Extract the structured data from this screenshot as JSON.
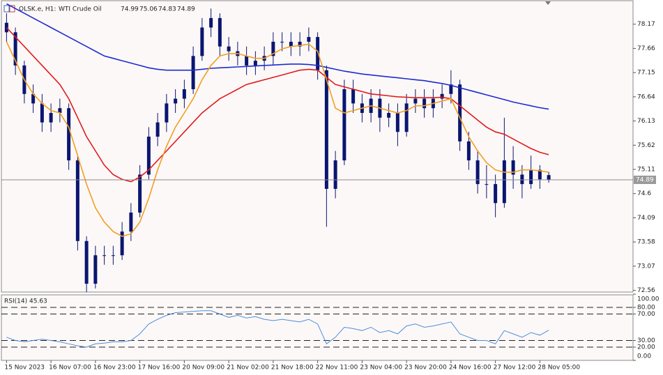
{
  "chart_data": [
    {
      "type": "candlestick",
      "title": "OLSK.e, H1:",
      "subtitle": "WTI Crude Oil",
      "categories": [
        "15 Nov 2023",
        null,
        null,
        null,
        null,
        "16 Nov 07:00",
        null,
        null,
        null,
        null,
        "16 Nov 23:00",
        null,
        null,
        null,
        null,
        "17 Nov 16:00",
        null,
        null,
        null,
        null,
        "20 Nov 09:00",
        null,
        null,
        null,
        null,
        "21 Nov 02:00",
        null,
        null,
        null,
        null,
        "21 Nov 18:00",
        null,
        null,
        null,
        null,
        "22 Nov 11:00",
        null,
        null,
        null,
        null,
        "23 Nov 04:00",
        null,
        null,
        null,
        null,
        "23 Nov 20:00",
        null,
        null,
        null,
        null,
        "24 Nov 16:00",
        null,
        null,
        null,
        null,
        "27 Nov 12:00",
        null,
        null,
        null,
        null,
        "28 Nov 05:00",
        null
      ],
      "open": [
        78.2,
        78.0,
        77.3,
        76.7,
        76.5,
        76.1,
        76.3,
        76.4,
        75.3,
        73.6,
        72.7,
        73.3,
        73.3,
        73.3,
        73.8,
        74.2,
        75.0,
        75.8,
        76.1,
        76.5,
        76.6,
        76.8,
        77.5,
        78.1,
        78.3,
        77.7,
        77.6,
        77.5,
        77.3,
        77.4,
        77.5,
        77.8,
        77.8,
        77.7,
        77.8,
        77.9,
        77.2,
        74.7,
        75.3,
        76.8,
        76.5,
        76.3,
        76.6,
        76.2,
        76.3,
        75.9,
        76.5,
        76.6,
        76.4,
        76.6,
        76.7,
        76.9,
        75.7,
        75.3,
        74.8,
        74.8,
        74.4,
        75.3,
        75.0,
        74.8,
        75.1,
        74.99
      ],
      "high": [
        78.4,
        78.1,
        77.4,
        76.9,
        76.7,
        76.5,
        76.6,
        76.5,
        75.4,
        73.7,
        73.5,
        73.5,
        73.5,
        74.0,
        74.4,
        75.2,
        76.0,
        76.3,
        76.7,
        76.8,
        77.0,
        77.7,
        78.3,
        78.5,
        78.4,
        77.9,
        77.8,
        77.7,
        77.6,
        77.7,
        78.0,
        78.0,
        78.0,
        78.0,
        78.1,
        78.0,
        77.3,
        75.5,
        77.0,
        77.0,
        76.7,
        76.8,
        76.8,
        76.5,
        76.5,
        76.7,
        76.8,
        76.8,
        76.8,
        76.9,
        77.2,
        77.0,
        75.9,
        75.5,
        75.2,
        75.0,
        76.2,
        75.6,
        75.2,
        75.4,
        75.2,
        75.06
      ],
      "low": [
        77.8,
        77.1,
        76.5,
        76.3,
        75.9,
        75.9,
        76.1,
        75.1,
        73.4,
        72.5,
        72.6,
        73.1,
        73.1,
        73.2,
        73.6,
        74.1,
        74.9,
        75.6,
        75.9,
        76.3,
        76.4,
        76.7,
        77.4,
        77.9,
        77.5,
        77.4,
        77.3,
        77.1,
        77.1,
        77.2,
        77.3,
        77.6,
        77.5,
        77.5,
        77.6,
        77.0,
        73.9,
        74.5,
        75.2,
        76.3,
        76.1,
        76.1,
        75.9,
        76.0,
        75.6,
        75.8,
        76.3,
        76.2,
        76.2,
        76.4,
        76.5,
        75.5,
        75.1,
        74.6,
        74.5,
        74.1,
        74.3,
        74.7,
        74.5,
        74.7,
        74.7,
        74.83
      ],
      "close": [
        78.0,
        77.3,
        76.7,
        76.5,
        76.1,
        76.3,
        76.4,
        75.3,
        73.6,
        72.7,
        73.3,
        73.3,
        73.3,
        73.8,
        74.2,
        75.0,
        75.8,
        76.1,
        76.5,
        76.6,
        76.8,
        77.5,
        78.1,
        78.3,
        77.7,
        77.6,
        77.5,
        77.3,
        77.4,
        77.5,
        77.8,
        77.8,
        77.7,
        77.8,
        77.9,
        77.2,
        74.7,
        75.3,
        76.8,
        76.5,
        76.3,
        76.6,
        76.2,
        76.3,
        75.9,
        76.5,
        76.6,
        76.4,
        76.6,
        76.7,
        76.9,
        75.7,
        75.3,
        74.8,
        74.8,
        74.4,
        75.3,
        75.0,
        74.8,
        75.1,
        74.9,
        74.89
      ],
      "color": "#0a1670",
      "series": [
        {
          "color": "#1c2bd0",
          "values": [
            78.6,
            78.5,
            78.4,
            78.3,
            78.2,
            78.1,
            78.0,
            77.9,
            77.8,
            77.7,
            77.6,
            77.5,
            77.45,
            77.4,
            77.35,
            77.3,
            77.25,
            77.22,
            77.2,
            77.2,
            77.2,
            77.2,
            77.22,
            77.24,
            77.25,
            77.26,
            77.27,
            77.28,
            77.29,
            77.3,
            77.31,
            77.32,
            77.33,
            77.33,
            77.32,
            77.3,
            77.26,
            77.22,
            77.18,
            77.15,
            77.12,
            77.1,
            77.08,
            77.06,
            77.04,
            77.02,
            77.0,
            76.98,
            76.95,
            76.92,
            76.88,
            76.83,
            76.78,
            76.73,
            76.68,
            76.63,
            76.58,
            76.53,
            76.49,
            76.45,
            76.41,
            76.38
          ]
        },
        {
          "color": "#e01b1b",
          "values": [
            78.1,
            77.9,
            77.7,
            77.5,
            77.3,
            77.1,
            76.9,
            76.6,
            76.2,
            75.8,
            75.5,
            75.2,
            75.0,
            74.9,
            74.85,
            74.95,
            75.1,
            75.3,
            75.5,
            75.7,
            75.9,
            76.1,
            76.3,
            76.45,
            76.6,
            76.7,
            76.8,
            76.9,
            76.95,
            77.0,
            77.05,
            77.1,
            77.15,
            77.2,
            77.22,
            77.2,
            77.05,
            76.9,
            76.85,
            76.8,
            76.75,
            76.7,
            76.68,
            76.66,
            76.64,
            76.63,
            76.62,
            76.62,
            76.62,
            76.63,
            76.6,
            76.45,
            76.3,
            76.15,
            76.0,
            75.9,
            75.85,
            75.75,
            75.65,
            75.55,
            75.47,
            75.42
          ]
        },
        {
          "color": "#f0a020",
          "values": [
            77.8,
            77.4,
            77.0,
            76.7,
            76.5,
            76.35,
            76.3,
            76.0,
            75.4,
            74.8,
            74.3,
            74.0,
            73.8,
            73.7,
            73.75,
            74.0,
            74.5,
            75.1,
            75.6,
            76.0,
            76.3,
            76.6,
            77.0,
            77.3,
            77.5,
            77.55,
            77.55,
            77.5,
            77.45,
            77.45,
            77.55,
            77.65,
            77.7,
            77.72,
            77.75,
            77.6,
            77.0,
            76.4,
            76.3,
            76.35,
            76.4,
            76.45,
            76.4,
            76.35,
            76.3,
            76.35,
            76.45,
            76.45,
            76.5,
            76.55,
            76.6,
            76.2,
            75.8,
            75.5,
            75.25,
            75.1,
            75.05,
            75.05,
            75.1,
            75.1,
            75.08,
            75.05
          ]
        }
      ],
      "ylim": [
        72.51,
        78.68
      ],
      "yticks": [
        78.17,
        77.66,
        77.15,
        76.64,
        76.13,
        75.62,
        75.11,
        74.6,
        74.09,
        73.58,
        73.07,
        72.56
      ]
    },
    {
      "type": "line",
      "title": "RSI(14)",
      "color": "#4a8fd8",
      "values": [
        35,
        30,
        28,
        30,
        32,
        30,
        28,
        25,
        22,
        20,
        25,
        26,
        28,
        28,
        30,
        40,
        55,
        62,
        68,
        72,
        73,
        74,
        75,
        75,
        70,
        65,
        68,
        64,
        66,
        62,
        60,
        62,
        60,
        58,
        62,
        55,
        25,
        35,
        50,
        48,
        45,
        50,
        42,
        45,
        40,
        52,
        55,
        50,
        52,
        55,
        58,
        40,
        35,
        30,
        30,
        25,
        45,
        40,
        35,
        42,
        38,
        45.63
      ],
      "ylim": [
        0,
        100
      ],
      "yticks": [
        {
          "value": 100,
          "label": "100.00"
        },
        {
          "value": 80,
          "label": "80.00"
        },
        {
          "value": 70,
          "label": "70.00"
        },
        {
          "value": 30,
          "label": "30.00"
        },
        {
          "value": 20,
          "label": "20.00"
        },
        {
          "value": 0,
          "label": "0.00"
        }
      ]
    }
  ]
}
